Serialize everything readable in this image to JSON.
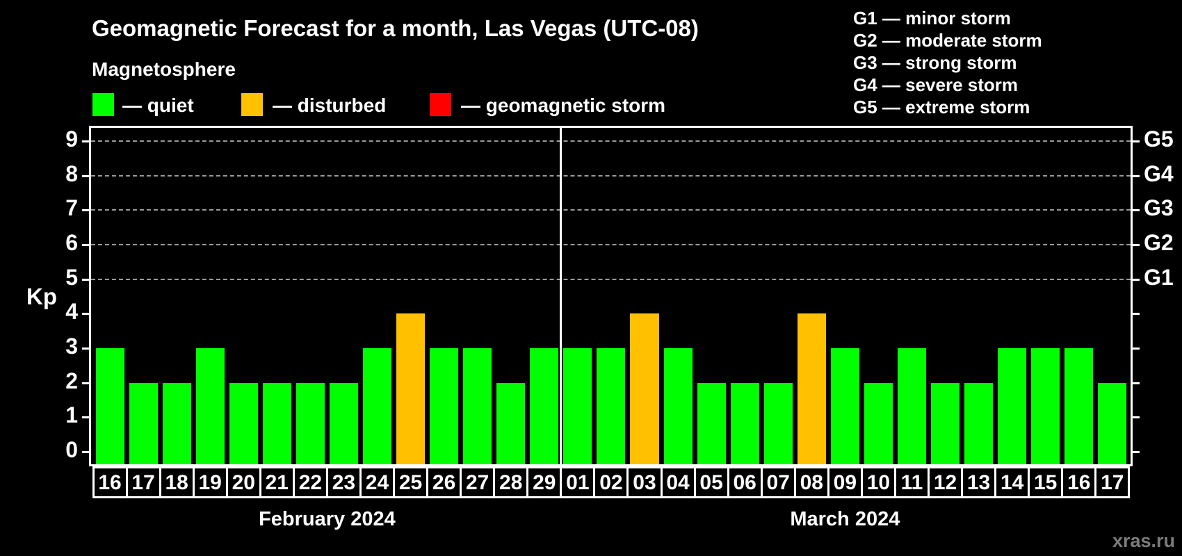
{
  "header": {
    "title": "Geomagnetic Forecast for a month, Las Vegas (UTC-08)",
    "subtitle": "Magnetosphere"
  },
  "legend": {
    "items": [
      {
        "key": "quiet",
        "label": "— quiet",
        "color": "#00ff00"
      },
      {
        "key": "disturbed",
        "label": "— disturbed",
        "color": "#ffc000"
      },
      {
        "key": "storm",
        "label": "— geomagnetic storm",
        "color": "#ff0000"
      }
    ]
  },
  "g_legend": {
    "lines": [
      "G1 — minor storm",
      "G2 — moderate storm",
      "G3 — strong storm",
      "G4 — severe storm",
      "G5 — extreme storm"
    ]
  },
  "watermark": "xras.ru",
  "chart_data": {
    "type": "bar",
    "title": "Geomagnetic Forecast for a month, Las Vegas (UTC-08)",
    "ylabel": "Kp",
    "ylim": [
      0,
      9
    ],
    "y_ticks": [
      0,
      1,
      2,
      3,
      4,
      5,
      6,
      7,
      8,
      9
    ],
    "grid": "dashed horizontal lines at Kp 5-9 only",
    "legend_position": "top",
    "g_levels": [
      {
        "label": "G1",
        "kp": 5
      },
      {
        "label": "G2",
        "kp": 6
      },
      {
        "label": "G3",
        "kp": 7
      },
      {
        "label": "G4",
        "kp": 8
      },
      {
        "label": "G5",
        "kp": 9
      }
    ],
    "bar_colors": {
      "quiet": "#00ff00",
      "disturbed": "#ffc000",
      "storm": "#ff0000"
    },
    "months": [
      {
        "label": "February 2024",
        "days": [
          {
            "date": "16",
            "kp": 3,
            "status": "quiet"
          },
          {
            "date": "17",
            "kp": 2,
            "status": "quiet"
          },
          {
            "date": "18",
            "kp": 2,
            "status": "quiet"
          },
          {
            "date": "19",
            "kp": 3,
            "status": "quiet"
          },
          {
            "date": "20",
            "kp": 2,
            "status": "quiet"
          },
          {
            "date": "21",
            "kp": 2,
            "status": "quiet"
          },
          {
            "date": "22",
            "kp": 2,
            "status": "quiet"
          },
          {
            "date": "23",
            "kp": 2,
            "status": "quiet"
          },
          {
            "date": "24",
            "kp": 3,
            "status": "quiet"
          },
          {
            "date": "25",
            "kp": 4,
            "status": "disturbed"
          },
          {
            "date": "26",
            "kp": 3,
            "status": "quiet"
          },
          {
            "date": "27",
            "kp": 3,
            "status": "quiet"
          },
          {
            "date": "28",
            "kp": 2,
            "status": "quiet"
          },
          {
            "date": "29",
            "kp": 3,
            "status": "quiet"
          }
        ]
      },
      {
        "label": "March 2024",
        "days": [
          {
            "date": "01",
            "kp": 3,
            "status": "quiet"
          },
          {
            "date": "02",
            "kp": 3,
            "status": "quiet"
          },
          {
            "date": "03",
            "kp": 4,
            "status": "disturbed"
          },
          {
            "date": "04",
            "kp": 3,
            "status": "quiet"
          },
          {
            "date": "05",
            "kp": 2,
            "status": "quiet"
          },
          {
            "date": "06",
            "kp": 2,
            "status": "quiet"
          },
          {
            "date": "07",
            "kp": 2,
            "status": "quiet"
          },
          {
            "date": "08",
            "kp": 4,
            "status": "disturbed"
          },
          {
            "date": "09",
            "kp": 3,
            "status": "quiet"
          },
          {
            "date": "10",
            "kp": 2,
            "status": "quiet"
          },
          {
            "date": "11",
            "kp": 3,
            "status": "quiet"
          },
          {
            "date": "12",
            "kp": 2,
            "status": "quiet"
          },
          {
            "date": "13",
            "kp": 2,
            "status": "quiet"
          },
          {
            "date": "14",
            "kp": 3,
            "status": "quiet"
          },
          {
            "date": "15",
            "kp": 3,
            "status": "quiet"
          },
          {
            "date": "16",
            "kp": 3,
            "status": "quiet"
          },
          {
            "date": "17",
            "kp": 2,
            "status": "quiet"
          }
        ]
      }
    ]
  }
}
